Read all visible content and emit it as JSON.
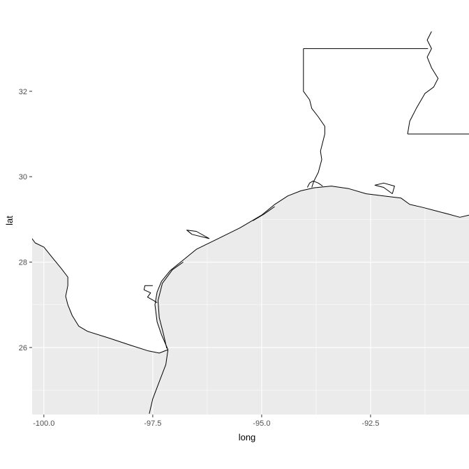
{
  "chart_data": {
    "type": "map",
    "xlabel": "long",
    "ylabel": "lat",
    "xlim": [
      -100.27,
      -90.24
    ],
    "ylim": [
      24.43,
      33.5
    ],
    "x_ticks": [
      -100.0,
      -97.5,
      -95.0,
      -92.5
    ],
    "x_tick_labels": [
      "-100.0",
      "-97.5",
      "-95.0",
      "-92.5"
    ],
    "y_ticks": [
      26,
      28,
      30,
      32
    ],
    "y_tick_labels": [
      "26",
      "28",
      "30",
      "32"
    ],
    "grid": true,
    "colors": {
      "water_fill": "#ebebeb",
      "gridline": "#ffffff",
      "land_fill": "#ffffff",
      "outline": "#000000",
      "tick_text": "#4d4d4d",
      "axis_title": "#000000"
    },
    "paths": [
      {
        "name": "mexico-border",
        "coords": [
          [
            -100.38,
            28.7
          ],
          [
            -100.2,
            28.45
          ],
          [
            -100.0,
            28.35
          ],
          [
            -99.8,
            28.1
          ],
          [
            -99.6,
            27.85
          ],
          [
            -99.45,
            27.65
          ],
          [
            -99.45,
            27.45
          ],
          [
            -99.5,
            27.2
          ],
          [
            -99.45,
            27.0
          ],
          [
            -99.35,
            26.75
          ],
          [
            -99.2,
            26.5
          ],
          [
            -99.0,
            26.38
          ],
          [
            -98.5,
            26.22
          ],
          [
            -98.0,
            26.05
          ],
          [
            -97.6,
            25.92
          ],
          [
            -97.35,
            25.87
          ],
          [
            -97.15,
            25.95
          ]
        ]
      },
      {
        "name": "rio-grande-south",
        "coords": [
          [
            -97.15,
            25.95
          ],
          [
            -97.2,
            25.6
          ],
          [
            -97.35,
            25.2
          ],
          [
            -97.5,
            24.8
          ],
          [
            -97.58,
            24.45
          ]
        ]
      },
      {
        "name": "texas-mainland-coast",
        "coords": [
          [
            -97.15,
            25.95
          ],
          [
            -97.3,
            26.3
          ],
          [
            -97.4,
            26.6
          ],
          [
            -97.45,
            27.0
          ],
          [
            -97.4,
            27.3
          ],
          [
            -97.3,
            27.55
          ],
          [
            -97.1,
            27.8
          ],
          [
            -96.8,
            28.05
          ],
          [
            -96.5,
            28.3
          ],
          [
            -96.0,
            28.55
          ],
          [
            -95.5,
            28.8
          ],
          [
            -95.0,
            29.1
          ],
          [
            -94.7,
            29.35
          ],
          [
            -94.4,
            29.55
          ],
          [
            -94.1,
            29.67
          ],
          [
            -93.8,
            29.74
          ],
          [
            -93.4,
            29.78
          ],
          [
            -93.0,
            29.72
          ],
          [
            -92.6,
            29.6
          ],
          [
            -92.2,
            29.55
          ],
          [
            -91.8,
            29.5
          ],
          [
            -91.6,
            29.35
          ],
          [
            -91.3,
            29.28
          ],
          [
            -91.0,
            29.2
          ],
          [
            -90.7,
            29.12
          ],
          [
            -90.45,
            29.05
          ],
          [
            -90.24,
            29.1
          ]
        ]
      },
      {
        "name": "padre-island",
        "coords": [
          [
            -97.18,
            25.98
          ],
          [
            -97.25,
            26.3
          ],
          [
            -97.35,
            26.7
          ],
          [
            -97.38,
            27.1
          ],
          [
            -97.28,
            27.5
          ],
          [
            -97.05,
            27.82
          ],
          [
            -96.8,
            28.0
          ]
        ]
      },
      {
        "name": "galveston-island",
        "coords": [
          [
            -95.2,
            28.97
          ],
          [
            -94.95,
            29.12
          ],
          [
            -94.7,
            29.3
          ]
        ]
      },
      {
        "name": "bay-inlets-tx",
        "coords": [
          [
            -97.5,
            27.45
          ],
          [
            -97.68,
            27.45
          ],
          [
            -97.7,
            27.35
          ],
          [
            -97.55,
            27.28
          ],
          [
            -97.62,
            27.18
          ],
          [
            -97.48,
            27.1
          ],
          [
            -97.4,
            27.05
          ]
        ]
      },
      {
        "name": "matagorda-bay",
        "coords": [
          [
            -96.2,
            28.55
          ],
          [
            -96.6,
            28.65
          ],
          [
            -96.72,
            28.75
          ],
          [
            -96.5,
            28.72
          ],
          [
            -96.2,
            28.55
          ]
        ]
      },
      {
        "name": "sabine-lake",
        "coords": [
          [
            -93.95,
            29.75
          ],
          [
            -93.9,
            29.85
          ],
          [
            -93.82,
            29.9
          ],
          [
            -93.7,
            29.85
          ],
          [
            -93.6,
            29.78
          ]
        ]
      },
      {
        "name": "texas-louisiana-border",
        "coords": [
          [
            -94.04,
            33.0
          ],
          [
            -94.04,
            32.0
          ],
          [
            -93.9,
            31.8
          ],
          [
            -93.85,
            31.6
          ],
          [
            -93.7,
            31.4
          ],
          [
            -93.55,
            31.18
          ],
          [
            -93.55,
            31.0
          ],
          [
            -93.6,
            30.8
          ],
          [
            -93.65,
            30.6
          ],
          [
            -93.62,
            30.4
          ],
          [
            -93.7,
            30.1
          ],
          [
            -93.8,
            29.9
          ],
          [
            -93.85,
            29.75
          ]
        ]
      },
      {
        "name": "vermilion-bay",
        "coords": [
          [
            -92.0,
            29.6
          ],
          [
            -92.2,
            29.75
          ],
          [
            -92.4,
            29.8
          ],
          [
            -92.2,
            29.85
          ],
          [
            -91.95,
            29.78
          ],
          [
            -92.0,
            29.6
          ]
        ]
      },
      {
        "name": "arkansas-line",
        "coords": [
          [
            -94.04,
            33.0
          ],
          [
            -91.18,
            33.0
          ]
        ]
      },
      {
        "name": "mississippi-river",
        "coords": [
          [
            -91.1,
            33.4
          ],
          [
            -91.2,
            33.2
          ],
          [
            -91.1,
            33.0
          ],
          [
            -91.2,
            32.8
          ],
          [
            -91.1,
            32.55
          ],
          [
            -90.95,
            32.3
          ],
          [
            -91.05,
            32.1
          ],
          [
            -91.25,
            31.95
          ],
          [
            -91.45,
            31.6
          ],
          [
            -91.6,
            31.3
          ],
          [
            -91.65,
            31.0
          ]
        ]
      },
      {
        "name": "ms-la-border",
        "coords": [
          [
            -91.65,
            31.0
          ],
          [
            -90.24,
            31.0
          ]
        ]
      }
    ]
  }
}
